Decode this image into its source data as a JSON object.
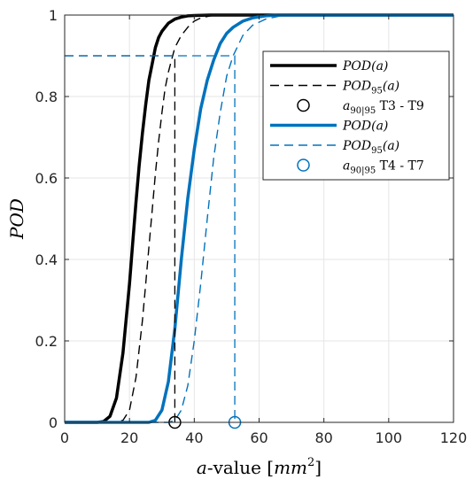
{
  "chart_data": {
    "type": "line",
    "xlabel": "a-value [mm²]",
    "xlabel_parts": {
      "var": "a",
      "rest": "-value [",
      "unit": "mm",
      "exp": "2",
      "close": "]"
    },
    "ylabel": "POD",
    "xlim": [
      0,
      120
    ],
    "ylim": [
      0,
      1
    ],
    "xticks": [
      "0",
      "20",
      "40",
      "60",
      "80",
      "100",
      "120"
    ],
    "yticks": [
      "0",
      "0.2",
      "0.4",
      "0.6",
      "0.8",
      "1"
    ],
    "grid": true,
    "legend_position": "top-right",
    "colors": {
      "black": "#000000",
      "blue": "#0072BD",
      "grid": "#e6e6e6",
      "axis": "#262626"
    },
    "reference_level": 0.9,
    "series": [
      {
        "legend": "POD(a)",
        "group": "T3 - T9",
        "color": "#000000",
        "style": "solid",
        "x": [
          0,
          10,
          12,
          14,
          16,
          18,
          20,
          21,
          22,
          23,
          24,
          25,
          26,
          27,
          28,
          29,
          30,
          32,
          34,
          36,
          38,
          40,
          45,
          50,
          120
        ],
        "y": [
          0,
          0,
          0.002,
          0.015,
          0.06,
          0.17,
          0.34,
          0.44,
          0.54,
          0.63,
          0.71,
          0.78,
          0.84,
          0.88,
          0.92,
          0.945,
          0.96,
          0.98,
          0.99,
          0.995,
          0.998,
          0.999,
          1,
          1,
          1
        ]
      },
      {
        "legend": "POD95(a)",
        "group": "T3 - T9",
        "color": "#000000",
        "style": "dashed",
        "x": [
          0,
          16,
          18,
          20,
          22,
          24,
          25,
          26,
          27,
          28,
          29,
          30,
          31,
          32,
          33,
          34,
          36,
          38,
          40,
          42,
          45,
          50,
          120
        ],
        "y": [
          0,
          0,
          0.005,
          0.03,
          0.11,
          0.25,
          0.34,
          0.43,
          0.52,
          0.61,
          0.69,
          0.76,
          0.82,
          0.86,
          0.89,
          0.92,
          0.95,
          0.97,
          0.985,
          0.993,
          0.998,
          1,
          1
        ]
      },
      {
        "legend": "POD(a)",
        "group": "T4 - T7",
        "color": "#0072BD",
        "style": "solid",
        "x": [
          0,
          26,
          28,
          30,
          32,
          34,
          36,
          38,
          40,
          42,
          44,
          46,
          48,
          50,
          52,
          55,
          58,
          62,
          66,
          70,
          120
        ],
        "y": [
          0,
          0,
          0.005,
          0.03,
          0.1,
          0.23,
          0.4,
          0.55,
          0.67,
          0.77,
          0.84,
          0.89,
          0.93,
          0.955,
          0.97,
          0.985,
          0.993,
          0.998,
          1,
          1,
          1
        ]
      },
      {
        "legend": "POD95(a)",
        "group": "T4 - T7",
        "color": "#0072BD",
        "style": "dashed",
        "x": [
          0,
          32,
          34,
          36,
          38,
          40,
          42,
          44,
          46,
          48,
          50,
          52,
          55,
          58,
          62,
          66,
          70,
          120
        ],
        "y": [
          0,
          0,
          0.005,
          0.03,
          0.09,
          0.2,
          0.34,
          0.5,
          0.65,
          0.76,
          0.85,
          0.9,
          0.95,
          0.975,
          0.99,
          0.997,
          1,
          1
        ]
      }
    ],
    "a90_95": [
      {
        "legend": "a90|95 T3 - T9",
        "group": "T3 - T9",
        "x": 34,
        "color": "#000000"
      },
      {
        "legend": "a90|95 T4 - T7",
        "group": "T4 - T7",
        "x": 52.5,
        "color": "#0072BD"
      }
    ],
    "legend_entries": [
      {
        "kind": "line",
        "style": "solid",
        "color": "#000000",
        "label": "POD(a)",
        "main": "POD",
        "sub": "",
        "arg": "(a)",
        "suffix": ""
      },
      {
        "kind": "line",
        "style": "dashed",
        "color": "#000000",
        "label": "POD95(a)",
        "main": "POD",
        "sub": "95",
        "arg": "(a)",
        "suffix": ""
      },
      {
        "kind": "marker",
        "style": "circle",
        "color": "#000000",
        "label": "a90|95 T3 - T9",
        "main": "a",
        "sub": "90|95",
        "arg": "",
        "suffix": " T3 - T9"
      },
      {
        "kind": "line",
        "style": "solid",
        "color": "#0072BD",
        "label": "POD(a)",
        "main": "POD",
        "sub": "",
        "arg": "(a)",
        "suffix": ""
      },
      {
        "kind": "line",
        "style": "dashed",
        "color": "#0072BD",
        "label": "POD95(a)",
        "main": "POD",
        "sub": "95",
        "arg": "(a)",
        "suffix": ""
      },
      {
        "kind": "marker",
        "style": "circle",
        "color": "#0072BD",
        "label": "a90|95 T4 - T7",
        "main": "a",
        "sub": "90|95",
        "arg": "",
        "suffix": " T4 - T7"
      }
    ]
  }
}
